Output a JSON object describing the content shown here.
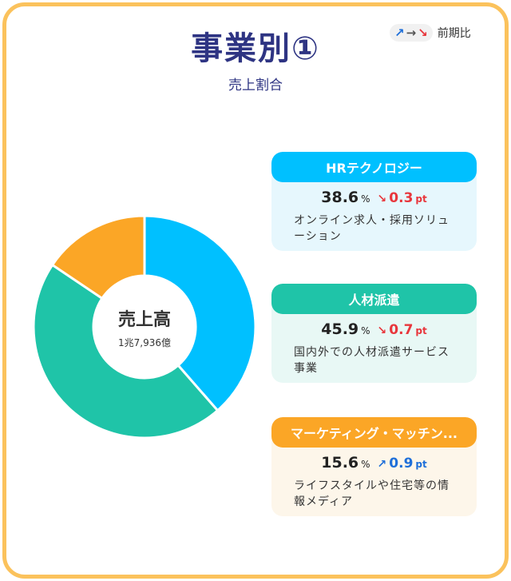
{
  "header": {
    "title": "事業別①",
    "subtitle": "売上割合",
    "legend": {
      "up": "↗",
      "flat": "→",
      "down": "↘",
      "label": "前期比"
    }
  },
  "colors": {
    "border": "#fbc25c",
    "title": "#2e3483",
    "hr": "#00c0ff",
    "staffing": "#1fc4a8",
    "marketing": "#fba626",
    "down": "#e8363c",
    "up": "#1e6fd9"
  },
  "donut": {
    "center_title": "売上高",
    "center_value": "1兆7,936億"
  },
  "chart_data": {
    "type": "pie",
    "title": "売上割合",
    "categories": [
      "HRテクノロジー",
      "人材派遣",
      "マーケティング・マッチン..."
    ],
    "values": [
      38.6,
      45.9,
      15.6
    ],
    "unit": "%",
    "total_label": "1兆7,936億",
    "changes_pt": [
      -0.3,
      -0.7,
      0.9
    ]
  },
  "segments": [
    {
      "name": "HRテクノロジー",
      "share": "38.6",
      "pct": "%",
      "arrow": "↘",
      "delta": "0.3",
      "pt": "pt",
      "direction": "down",
      "desc": "オンライン求人・採用ソリューション"
    },
    {
      "name": "人材派遣",
      "share": "45.9",
      "pct": "%",
      "arrow": "↘",
      "delta": "0.7",
      "pt": "pt",
      "direction": "down",
      "desc": "国内外での人材派遣サービス事業"
    },
    {
      "name": "マーケティング・マッチン...",
      "share": "15.6",
      "pct": "%",
      "arrow": "↗",
      "delta": "0.9",
      "pt": "pt",
      "direction": "up",
      "desc": "ライフスタイルや住宅等の情報メディア"
    }
  ]
}
